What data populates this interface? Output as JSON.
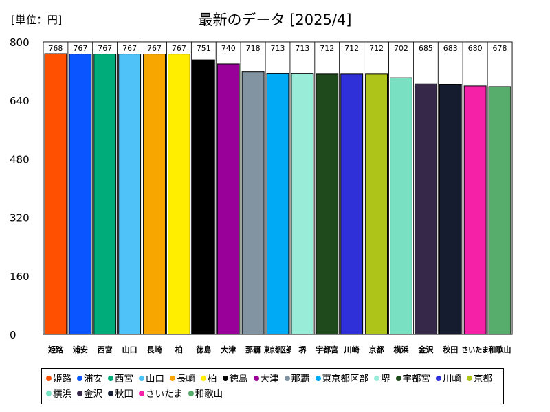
{
  "header": {
    "unit_label": "[単位：円]",
    "title": "最新のデータ [2025/4]"
  },
  "chart_data": {
    "type": "bar",
    "title": "最新のデータ [2025/4]",
    "ylabel": "[単位：円]",
    "xlabel": "",
    "ylim": [
      0,
      800
    ],
    "yticks": [
      0,
      160,
      320,
      480,
      640,
      800
    ],
    "grid": false,
    "legend_position": "bottom",
    "categories": [
      "姫路",
      "浦安",
      "西宮",
      "山口",
      "長崎",
      "柏",
      "徳島",
      "大津",
      "那覇",
      "東京都区部",
      "堺",
      "宇都宮",
      "川崎",
      "京都",
      "横浜",
      "金沢",
      "秋田",
      "さいたま",
      "和歌山"
    ],
    "values": [
      768,
      767,
      767,
      767,
      767,
      767,
      751,
      740,
      718,
      713,
      713,
      712,
      712,
      712,
      702,
      685,
      683,
      680,
      678
    ],
    "colors": [
      "#ff4f00",
      "#0a55ff",
      "#00ad7a",
      "#4fc3f7",
      "#f7a600",
      "#ffee00",
      "#000000",
      "#990099",
      "#8294a1",
      "#00aaf5",
      "#99ecd8",
      "#1f4a1c",
      "#3030d8",
      "#aec418",
      "#79e1c1",
      "#352848",
      "#161c30",
      "#f522a8",
      "#57ad6c"
    ]
  }
}
